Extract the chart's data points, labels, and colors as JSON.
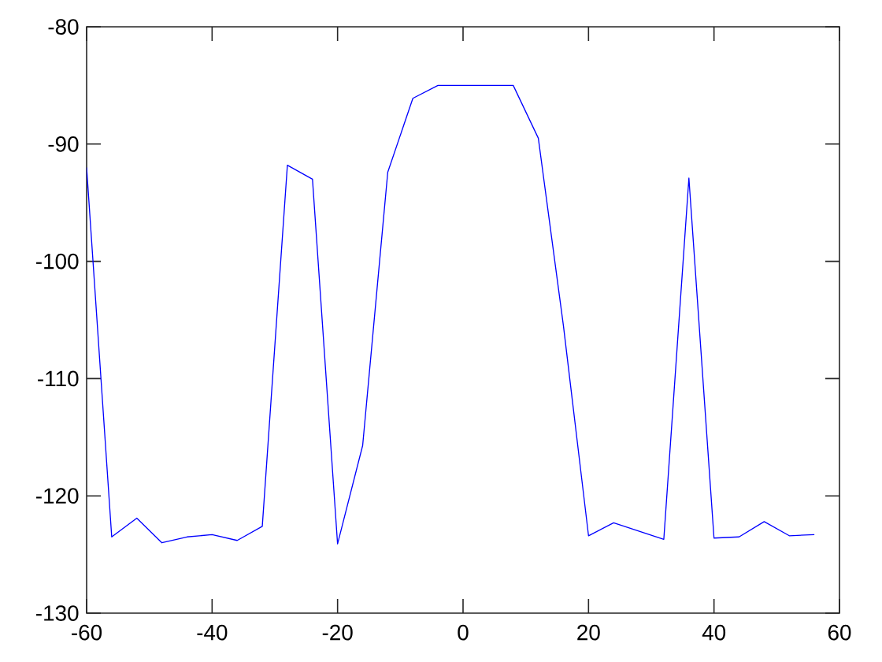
{
  "chart_data": {
    "type": "line",
    "x": [
      -60,
      -56,
      -52,
      -48,
      -44,
      -40,
      -36,
      -32,
      -28,
      -24,
      -20,
      -16,
      -12,
      -8,
      -4,
      0,
      4,
      8,
      12,
      16,
      20,
      24,
      28,
      32,
      36,
      40,
      44,
      48,
      52,
      56
    ],
    "values": [
      -92.0,
      -123.5,
      -121.9,
      -124.0,
      -123.5,
      -123.3,
      -123.8,
      -122.6,
      -91.8,
      -93.0,
      -124.1,
      -115.7,
      -92.4,
      -86.1,
      -85.0,
      -85.0,
      -85.0,
      -85.0,
      -89.5,
      -105.5,
      -123.4,
      -122.3,
      -123.0,
      -123.7,
      -92.9,
      -123.6,
      -123.5,
      -122.2,
      -123.4,
      -123.3
    ],
    "color": "#0000ff",
    "xlim": [
      -60,
      60
    ],
    "ylim": [
      -130,
      -80
    ],
    "xticks": [
      -60,
      -40,
      -20,
      0,
      20,
      40,
      60
    ],
    "yticks": [
      -130,
      -120,
      -110,
      -100,
      -90,
      -80
    ]
  }
}
